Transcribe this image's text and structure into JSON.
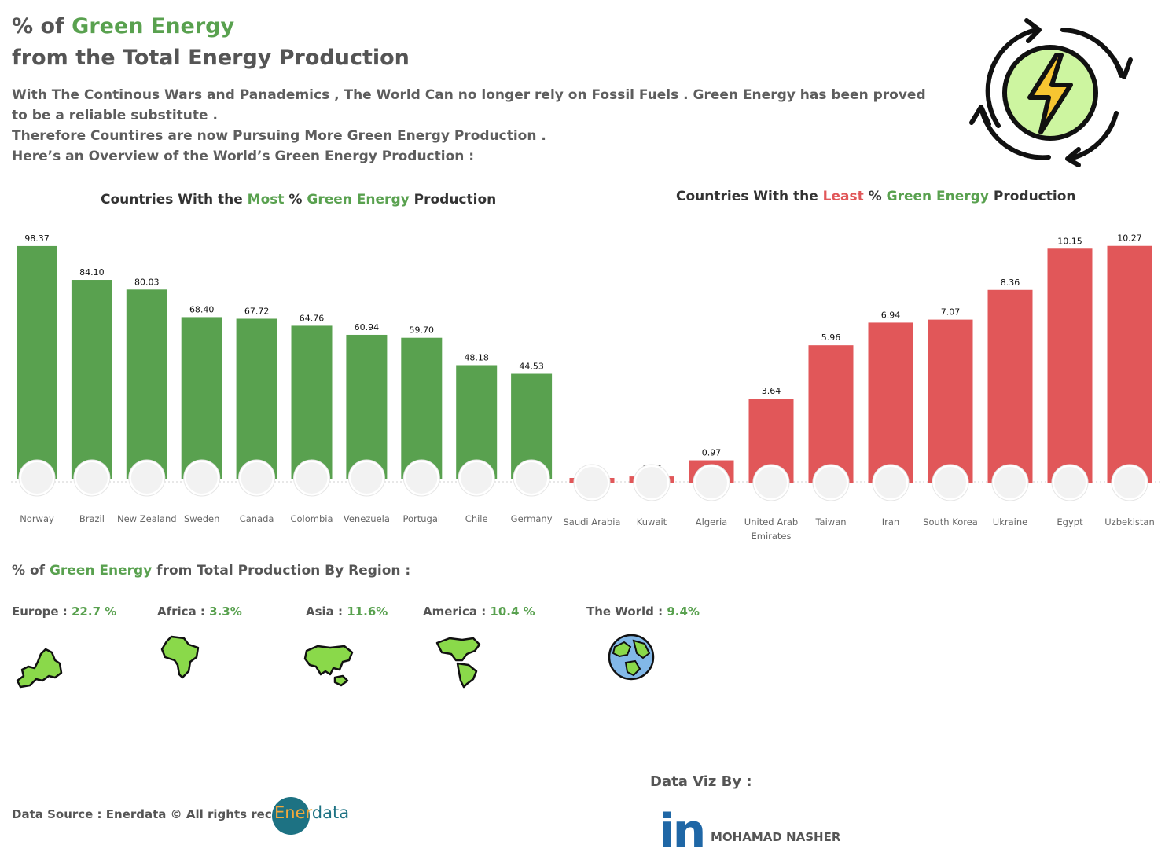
{
  "header": {
    "title_line1_prefix": "% of ",
    "title_line1_highlight": "Green Energy",
    "title_line2": "from the Total Energy Production",
    "description": [
      "With The Continous Wars and Panademics , The World Can no longer rely on Fossil Fuels . Green Energy has been proved to be a reliable substitute .",
      "Therefore Countires are now Pursuing More Green Energy Production .",
      "Here’s an Overview of the World’s Green Energy Production :"
    ]
  },
  "chart_most_title": {
    "prefix": "Countries With the ",
    "highlight": "Most",
    "mid": " % ",
    "green": "Green Energy",
    "suffix": " Production"
  },
  "chart_least_title": {
    "prefix": "Countries With the ",
    "highlight": "Least",
    "mid": " % ",
    "green": "Green Energy",
    "suffix": " Production"
  },
  "chart_data": [
    {
      "type": "bar",
      "title": "Countries With the Most % Green Energy Production",
      "categories": [
        "Norway",
        "Brazil",
        "New Zealand",
        "Sweden",
        "Canada",
        "Colombia",
        "Venezuela",
        "Portugal",
        "Chile",
        "Germany"
      ],
      "values": [
        98.37,
        84.1,
        80.03,
        68.4,
        67.72,
        64.76,
        60.94,
        59.7,
        48.18,
        44.53
      ],
      "value_labels": [
        "98.37",
        "84.10",
        "80.03",
        "68.40",
        "67.72",
        "64.76",
        "60.94",
        "59.70",
        "48.18",
        "44.53"
      ],
      "color": "#59a14f",
      "ylim": [
        0,
        100
      ]
    },
    {
      "type": "bar",
      "title": "Countries With the Least % Green Energy Production",
      "categories": [
        "Saudi Arabia",
        "Kuwait",
        "Algeria",
        "United Arab Emirates",
        "Taiwan",
        "Iran",
        "South Korea",
        "Ukraine",
        "Egypt",
        "Uzbekistan"
      ],
      "values": [
        0.2,
        0.27,
        0.97,
        3.64,
        5.96,
        6.94,
        7.07,
        8.36,
        10.15,
        10.27
      ],
      "value_labels": [
        "0.20",
        "0.27",
        "0.97",
        "3.64",
        "5.96",
        "6.94",
        "7.07",
        "8.36",
        "10.15",
        "10.27"
      ],
      "color": "#e15759",
      "ylim": [
        0,
        10.5
      ]
    }
  ],
  "regions": {
    "title_prefix": "% of ",
    "title_green": "Green Energy",
    "title_suffix": " from Total Production By Region :",
    "items": [
      {
        "name": "Europe",
        "value": "22.7 %",
        "icon": "europe-map-icon"
      },
      {
        "name": "Africa",
        "value": "3.3%",
        "icon": "africa-map-icon"
      },
      {
        "name": "Asia",
        "value": "11.6%",
        "icon": "asia-map-icon"
      },
      {
        "name": "America",
        "value": "10.4 %",
        "icon": "america-map-icon"
      },
      {
        "name": "The World",
        "value": "9.4%",
        "icon": "globe-icon"
      }
    ]
  },
  "footer": {
    "source": "Data Source : Enerdata © All rights received",
    "logo_part1": "Ener",
    "logo_part2": "data",
    "dataviz_label": "Data Viz By :",
    "linkedin": "in",
    "author": "MOHAMAD NASHER"
  },
  "colors": {
    "green": "#59a14f",
    "red": "#e15759",
    "text": "#555555"
  }
}
